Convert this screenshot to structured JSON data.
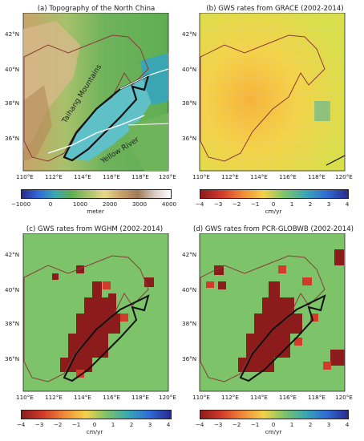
{
  "panels": [
    {
      "id": "a",
      "title": "(a) Topography of the North China"
    },
    {
      "id": "b",
      "title": "(b) GWS rates from GRACE (2002-2014)"
    },
    {
      "id": "c",
      "title": "(c) GWS rates from WGHM (2002-2014)"
    },
    {
      "id": "d",
      "title": "(d) GWS rates from PCR-GLOBWB (2002-2014)"
    }
  ],
  "map_axes": {
    "lon_ticks": [
      "110°E",
      "112°E",
      "114°E",
      "116°E",
      "118°E",
      "120°E"
    ],
    "lat_ticks": [
      "42°N",
      "40°N",
      "38°N",
      "36°N"
    ],
    "lon_range": [
      110,
      120
    ],
    "lat_range": [
      34,
      43.5
    ]
  },
  "annotations": {
    "mountains": "Taihang Mountains",
    "river": "Yellow River"
  },
  "colorbars": {
    "topo": {
      "ticks": [
        "−1000",
        "0",
        "1000",
        "2000",
        "3000",
        "4000"
      ],
      "unit": "meter"
    },
    "gws": {
      "ticks": [
        "−4",
        "−3",
        "−2",
        "−1",
        "0",
        "1",
        "2",
        "3",
        "4"
      ],
      "unit": "cm/yr"
    }
  },
  "colors": {
    "basin_boundary": "#8b3a3a",
    "plain_boundary": "#111111",
    "ocean_topo": "#3aa6b3",
    "deep_red": "#8c1c1c",
    "neutral_green": "#7dc36a"
  }
}
